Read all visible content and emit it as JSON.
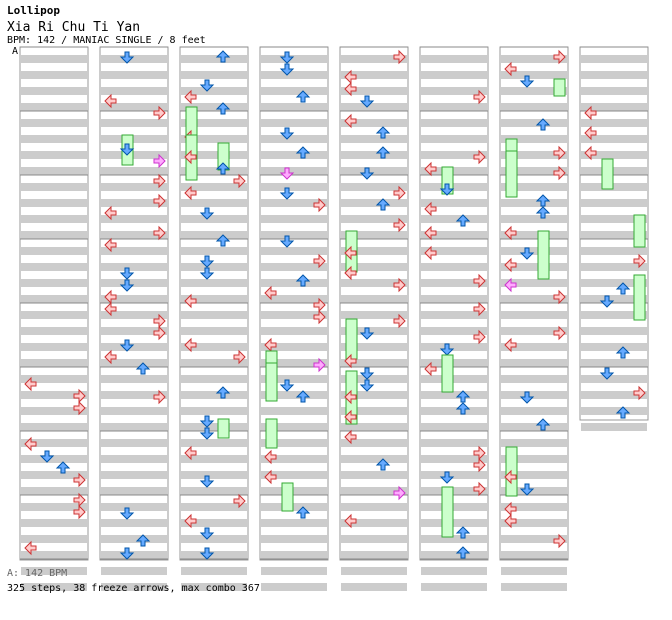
{
  "header": {
    "title": "Lollipop",
    "song": "Xia Ri Chu Ti Yan",
    "info": "BPM: 142 / MANIAC SINGLE / 8 feet",
    "marker": "A"
  },
  "footer": {
    "bpm_line": "A: 142 BPM",
    "summary": "325 steps, 38 freeze arrows, max combo 367"
  },
  "colors": {
    "stripe": "#cccccc",
    "left_right": "#ffcccc",
    "left_right_stroke": "#cc3333",
    "up_down": "#66aaff",
    "up_down_stroke": "#0055aa",
    "freeze_fill": "#ccffcc",
    "freeze_stroke": "#33aa33",
    "pink": "#ffaaff"
  }
}
